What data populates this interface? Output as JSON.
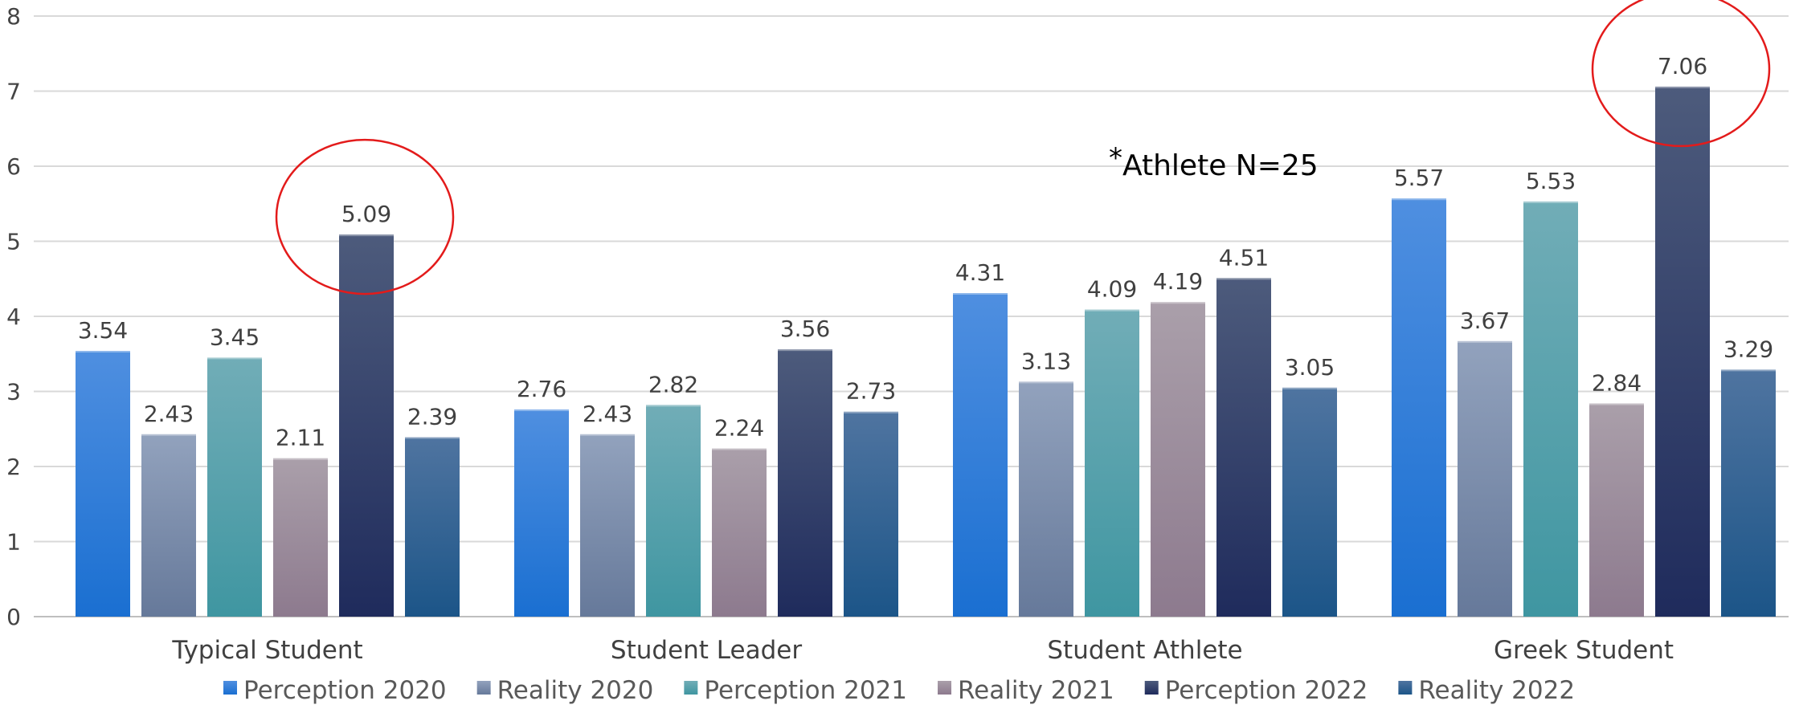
{
  "chart_data": {
    "type": "bar",
    "title": "",
    "xlabel": "",
    "ylabel": "",
    "ylim": [
      0,
      8
    ],
    "yticks": [
      0,
      1,
      2,
      3,
      4,
      5,
      6,
      7,
      8
    ],
    "grid": true,
    "legend_position": "bottom",
    "categories": [
      "Typical Student",
      "Student Leader",
      "Student Athlete",
      "Greek Student"
    ],
    "series": [
      {
        "name": "Perception 2020",
        "values": [
          3.54,
          2.76,
          4.31,
          5.57
        ],
        "labels": [
          "3.54",
          "2.76",
          "4.31",
          "5.57"
        ],
        "color_top": "#4f8fe0",
        "color_bottom": "#1a6fd1"
      },
      {
        "name": "Reality 2020",
        "values": [
          2.43,
          2.43,
          3.13,
          3.67
        ],
        "labels": [
          "2.43",
          "2.43",
          "3.13",
          "3.67"
        ],
        "color_top": "#92a2bd",
        "color_bottom": "#66799a"
      },
      {
        "name": "Perception 2021",
        "values": [
          3.45,
          2.82,
          4.09,
          5.53
        ],
        "labels": [
          "3.45",
          "2.82",
          "4.09",
          "5.53"
        ],
        "color_top": "#71adb7",
        "color_bottom": "#3f96a1"
      },
      {
        "name": "Reality 2021",
        "values": [
          2.11,
          2.24,
          4.19,
          2.84
        ],
        "labels": [
          "2.11",
          "2.24",
          "4.19",
          "2.84"
        ],
        "color_top": "#aa9faa",
        "color_bottom": "#8d7a8e"
      },
      {
        "name": "Perception 2022",
        "values": [
          5.09,
          3.56,
          4.51,
          7.06
        ],
        "labels": [
          "5.09",
          "3.56",
          "4.51",
          "7.06"
        ],
        "color_top": "#4d5b7c",
        "color_bottom": "#1f2b5c"
      },
      {
        "name": "Reality 2022",
        "values": [
          2.39,
          2.73,
          3.05,
          3.29
        ],
        "labels": [
          "2.39",
          "2.73",
          "3.05",
          "3.29"
        ],
        "color_top": "#4f74a0",
        "color_bottom": "#1c5588"
      }
    ],
    "annotations": [
      {
        "text_star": "*",
        "text": "Athlete N=25"
      }
    ],
    "highlight_circles": [
      {
        "series": "Perception 2022",
        "category": "Typical Student",
        "color": "#e31b1b"
      },
      {
        "series": "Perception 2022",
        "category": "Greek Student",
        "color": "#e31b1b"
      }
    ]
  }
}
